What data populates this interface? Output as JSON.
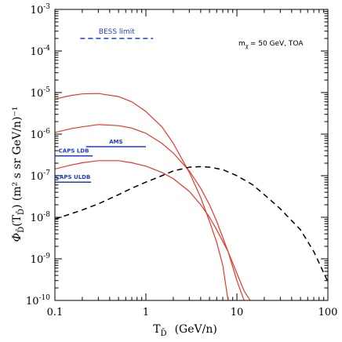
{
  "chart_data": {
    "type": "line",
    "xlabel_main": "T",
    "xlabel_sub": "D̄",
    "xlabel_unit": "(GeV/n)",
    "ylabel_main": "Φ",
    "ylabel_sub": "D̄",
    "ylabel_arg": "(T",
    "ylabel_arg_sub": "D̄",
    "ylabel_unit": ")   (m² s sr GeV/n)⁻¹",
    "x_scale": "log",
    "y_scale": "log",
    "xlim": [
      0.1,
      100
    ],
    "ylim": [
      1e-10,
      0.001
    ],
    "x_ticks": [
      {
        "value": 0.1,
        "label": "0.1"
      },
      {
        "value": 1,
        "label": "1"
      },
      {
        "value": 10,
        "label": "10"
      },
      {
        "value": 100,
        "label": "100"
      }
    ],
    "y_ticks": [
      {
        "value": 0.001,
        "base": "10",
        "exp": "-3"
      },
      {
        "value": 0.0001,
        "base": "10",
        "exp": "-4"
      },
      {
        "value": 1e-05,
        "base": "10",
        "exp": "-5"
      },
      {
        "value": 1e-06,
        "base": "10",
        "exp": "-6"
      },
      {
        "value": 1e-07,
        "base": "10",
        "exp": "-7"
      },
      {
        "value": 1e-08,
        "base": "10",
        "exp": "-8"
      },
      {
        "value": 1e-09,
        "base": "10",
        "exp": "-9"
      },
      {
        "value": 1e-10,
        "base": "10",
        "exp": "-10"
      }
    ],
    "annotation": {
      "main": "m",
      "sub": "χ",
      "rest": "= 50 GeV, TOA"
    },
    "series": [
      {
        "color": "#e8382b",
        "style": "solid",
        "x": [
          0.1,
          0.15,
          0.2,
          0.3,
          0.5,
          0.7,
          1,
          1.5,
          2,
          3,
          4,
          5,
          6,
          7,
          8
        ],
        "y": [
          7e-06,
          8.5e-06,
          9.3e-06,
          9.5e-06,
          8e-06,
          6e-06,
          3.5e-06,
          1.5e-06,
          6e-07,
          1.2e-07,
          3e-08,
          8e-09,
          2.5e-09,
          7e-10,
          1e-10
        ]
      },
      {
        "color": "#e8382b",
        "style": "solid",
        "x": [
          0.1,
          0.15,
          0.2,
          0.3,
          0.5,
          0.7,
          1,
          1.5,
          2,
          3,
          4,
          5,
          6,
          8,
          10,
          12
        ],
        "y": [
          1.1e-06,
          1.35e-06,
          1.5e-06,
          1.7e-06,
          1.6e-06,
          1.4e-06,
          1.05e-06,
          6e-07,
          3.5e-07,
          1.3e-07,
          5e-08,
          2e-08,
          8e-09,
          1.5e-09,
          3e-10,
          1e-10
        ]
      },
      {
        "color": "#e8382b",
        "style": "solid",
        "x": [
          0.1,
          0.15,
          0.2,
          0.3,
          0.5,
          0.7,
          1,
          1.5,
          2,
          3,
          4,
          5,
          6,
          8,
          10,
          12,
          14
        ],
        "y": [
          1.45e-07,
          1.8e-07,
          2.05e-07,
          2.3e-07,
          2.3e-07,
          2.05e-07,
          1.7e-07,
          1.2e-07,
          8.5e-08,
          4.2e-08,
          2e-08,
          1e-08,
          5e-09,
          1.5e-09,
          4.5e-10,
          1.7e-10,
          1e-10
        ]
      },
      {
        "color": "#000000",
        "style": "dashed",
        "x": [
          0.1,
          0.2,
          0.3,
          0.5,
          0.7,
          1,
          1.5,
          2,
          3,
          4,
          5,
          7,
          10,
          15,
          20,
          30,
          50,
          70,
          100
        ],
        "y": [
          9e-09,
          1.5e-08,
          2.1e-08,
          3.5e-08,
          5e-08,
          7e-08,
          1e-07,
          1.3e-07,
          1.6e-07,
          1.65e-07,
          1.6e-07,
          1.4e-07,
          1e-07,
          6e-08,
          3.5e-08,
          1.6e-08,
          5e-09,
          1.5e-09,
          2.8e-10
        ]
      }
    ],
    "limits": [
      {
        "label": "BESS limit",
        "x1": 0.19,
        "x2": 1.2,
        "y": 0.0002,
        "style": "dashed",
        "color": "#1f3cc8",
        "label_pos": "above"
      },
      {
        "label": "AMS",
        "x1": 0.22,
        "x2": 1.0,
        "y": 5e-07,
        "style": "solid",
        "color": "#1f3cc8",
        "label_pos": "above"
      },
      {
        "label": "CAPS LDB",
        "x1": 0.1,
        "x2": 0.26,
        "y": 3e-07,
        "style": "solid",
        "color": "#1f3cc8",
        "label_pos": "above"
      },
      {
        "label": "CAPS ULDB",
        "x1": 0.1,
        "x2": 0.25,
        "y": 7e-08,
        "style": "solid",
        "color": "#1f3cc8",
        "label_pos": "above"
      }
    ]
  }
}
